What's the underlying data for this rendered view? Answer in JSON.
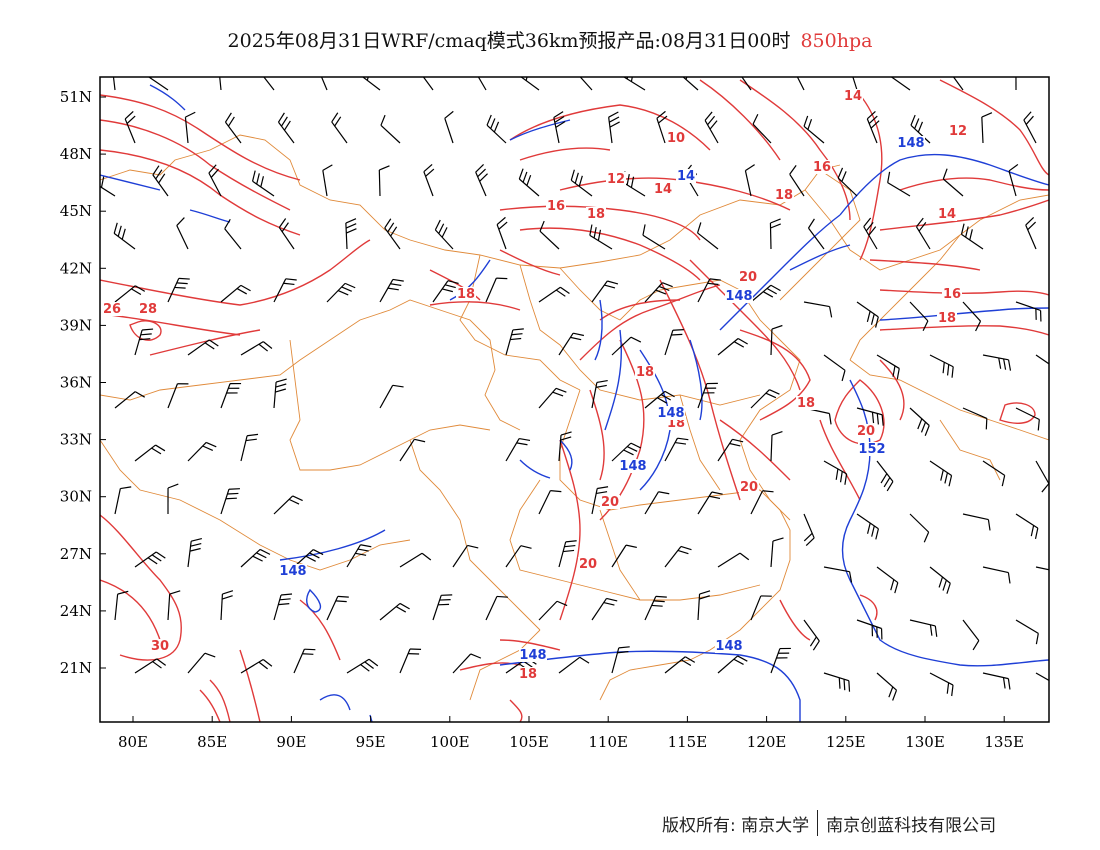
{
  "title": {
    "text": "2025年08月31日WRF/cmaq模式36km预报产品:08月31日00时",
    "level": "850hpa"
  },
  "colors": {
    "temperature": "#e03a3a",
    "geopotential": "#1f3fd6",
    "border": "#e08a3a",
    "wind": "#000000",
    "level_label": "#e03a3a"
  },
  "map_data": {
    "lon_labels": [
      "80E",
      "85E",
      "90E",
      "95E",
      "100E",
      "105E",
      "110E",
      "115E",
      "120E",
      "125E",
      "130E",
      "135E"
    ],
    "lat_labels": [
      "51N",
      "48N",
      "45N",
      "42N",
      "39N",
      "36N",
      "33N",
      "30N",
      "27N",
      "24N",
      "21N"
    ],
    "temperature_contour_labels": [
      "14",
      "12",
      "10",
      "12",
      "14",
      "16",
      "18",
      "18",
      "16",
      "18",
      "26",
      "28",
      "30",
      "20",
      "16",
      "18",
      "18",
      "18",
      "18",
      "20",
      "20",
      "20",
      "20",
      "18",
      "14"
    ],
    "height_contour_labels": [
      "148",
      "14",
      "148",
      "148",
      "148",
      "152",
      "148",
      "148",
      "148"
    ]
  },
  "footer": {
    "left": "版权所有: 南京大学",
    "right": "南京创蓝科技有限公司"
  }
}
